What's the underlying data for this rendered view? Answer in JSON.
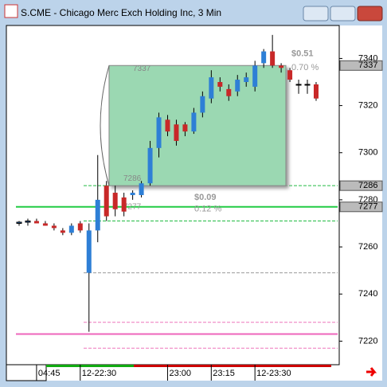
{
  "chart_data": {
    "type": "candlestick",
    "title": "S.CME - Chicago Merc Exch Holding Inc, 3 Min",
    "categories": [
      null,
      null,
      null,
      "04:45",
      null,
      null,
      null,
      null,
      "12-22:30",
      null,
      null,
      null,
      null,
      null,
      null,
      null,
      null,
      null,
      "23:00",
      null,
      null,
      null,
      null,
      "23:15",
      null,
      null,
      null,
      null,
      "12-23:30",
      null,
      null,
      null,
      null,
      null,
      null
    ],
    "open": [
      7270,
      7270.5,
      7271,
      7270,
      7269,
      7267,
      7266,
      7270,
      7249,
      7267,
      7286,
      7283,
      7281,
      7282,
      7282,
      7287,
      7302,
      7314,
      7312,
      7312,
      7309,
      7317,
      7323,
      7330,
      7327,
      7326,
      7330,
      7328,
      7338,
      7343,
      7337,
      7335,
      7329,
      7329,
      7329
    ],
    "high": [
      7271,
      7272,
      7272,
      7271,
      7270,
      7268,
      7270,
      7271,
      7270,
      7299,
      7288,
      7286,
      7283,
      7284,
      7288,
      7305,
      7317,
      7316,
      7314,
      7313,
      7319,
      7326,
      7335,
      7332,
      7329,
      7333,
      7334,
      7339,
      7344,
      7350,
      7338,
      7336,
      7331,
      7331,
      7330
    ],
    "low": [
      7269,
      7269,
      7270,
      7269,
      7267,
      7265,
      7265,
      7266,
      7224,
      7262,
      7271,
      7273,
      7273,
      7280,
      7281,
      7286,
      7298,
      7307,
      7303,
      7307,
      7308,
      7315,
      7321,
      7326,
      7322,
      7324,
      7328,
      7326,
      7336,
      7336,
      7334,
      7330,
      7325,
      7325,
      7322
    ],
    "close": [
      7270.5,
      7271,
      7270,
      7269,
      7268,
      7266,
      7269,
      7267,
      7267,
      7280,
      7273,
      7276,
      7275,
      7283,
      7287,
      7302,
      7315,
      7309,
      7305,
      7309,
      7317,
      7324,
      7332,
      7328,
      7324,
      7331,
      7332,
      7337,
      7343,
      7337,
      7336,
      7331,
      7329,
      7329,
      7323
    ],
    "up_color": "#2e7fd6",
    "down_color": "#c82828",
    "ylim": [
      7210,
      7354
    ],
    "yticks": [
      7220,
      7240,
      7260,
      7280,
      7300,
      7320,
      7340
    ],
    "price_markers": [
      7337,
      7286,
      7277
    ],
    "levels": [
      {
        "value": 7286,
        "color": "#22bb44",
        "dash": true
      },
      {
        "value": 7277,
        "color": "#22cc44",
        "dash": false
      },
      {
        "value": 7271,
        "color": "#22bb44",
        "dash": true
      },
      {
        "value": 7249,
        "color": "#999999",
        "dash": true
      },
      {
        "value": 7228,
        "color": "#ee77bb",
        "dash": true
      },
      {
        "value": 7223,
        "color": "#ee66bb",
        "dash": false
      },
      {
        "value": 7217,
        "color": "#ee77bb",
        "dash": true
      }
    ],
    "box": {
      "top": 7337,
      "bottom": 7286,
      "top_label": "7337",
      "bottom_label": "7286"
    },
    "annotations": [
      {
        "text": "$0.51",
        "y": 7342
      },
      {
        "text": "0.70 %",
        "y": 7336
      },
      {
        "text": "$0.09",
        "y": 7281
      },
      {
        "text": "0.12 %",
        "y": 7276
      },
      {
        "text": "7277",
        "y": 7277
      }
    ]
  }
}
